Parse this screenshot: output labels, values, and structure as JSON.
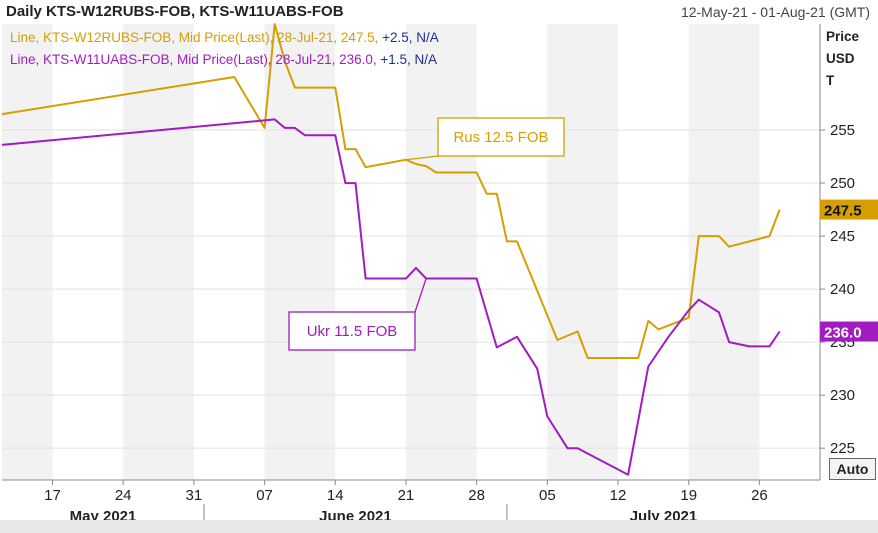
{
  "header": {
    "title": "Daily KTS-W12RUBS-FOB, KTS-W11UABS-FOB",
    "range": "12-May-21 - 01-Aug-21 (GMT)"
  },
  "legend": [
    {
      "series": "Line, KTS-W12RUBS-FOB, Mid Price(Last), 28-Jul-21, 247.5,",
      "change": "+2.5, N/A",
      "color": "#d69e00"
    },
    {
      "series": "Line, KTS-W11UABS-FOB, Mid Price(Last), 28-Jul-21, 236.0,",
      "change": "+1.5, N/A",
      "color": "#a21bc1"
    }
  ],
  "axis": {
    "title_line1": "Price",
    "title_line2": "USD",
    "title_line3": "T",
    "auto_label": "Auto"
  },
  "chart_data": {
    "type": "line",
    "title": "Daily KTS-W12RUBS-FOB, KTS-W11UABS-FOB",
    "date_range": "12-May-21 - 01-Aug-21 (GMT)",
    "ylabel": "Price USD T",
    "ylim": [
      222,
      265
    ],
    "yticks": [
      225,
      230,
      235,
      240,
      245,
      250,
      255
    ],
    "xlim": [
      "2021-05-12",
      "2021-08-01"
    ],
    "x_ticks": [
      {
        "date": "2021-05-17",
        "label": "17"
      },
      {
        "date": "2021-05-24",
        "label": "24"
      },
      {
        "date": "2021-05-31",
        "label": "31"
      },
      {
        "date": "2021-06-07",
        "label": "07"
      },
      {
        "date": "2021-06-14",
        "label": "14"
      },
      {
        "date": "2021-06-21",
        "label": "21"
      },
      {
        "date": "2021-06-28",
        "label": "28"
      },
      {
        "date": "2021-07-05",
        "label": "05"
      },
      {
        "date": "2021-07-12",
        "label": "12"
      },
      {
        "date": "2021-07-19",
        "label": "19"
      },
      {
        "date": "2021-07-26",
        "label": "26"
      }
    ],
    "months": [
      {
        "label": "May 2021",
        "start": "2021-05-12",
        "end": "2021-06-01"
      },
      {
        "label": "June 2021",
        "start": "2021-06-01",
        "end": "2021-07-01"
      },
      {
        "label": "July 2021",
        "start": "2021-07-01",
        "end": "2021-08-01"
      }
    ],
    "series": [
      {
        "name": "KTS-W12RUBS-FOB",
        "label": "Rus 12.5 FOB",
        "color": "#d69e00",
        "last": "247.5",
        "points": [
          [
            "2021-05-12",
            256.5
          ],
          [
            "2021-06-04",
            260.0
          ],
          [
            "2021-06-07",
            255.2
          ],
          [
            "2021-06-08",
            265.0
          ],
          [
            "2021-06-09",
            261.5
          ],
          [
            "2021-06-10",
            259.0
          ],
          [
            "2021-06-14",
            259.0
          ],
          [
            "2021-06-15",
            253.2
          ],
          [
            "2021-06-16",
            253.2
          ],
          [
            "2021-06-17",
            251.5
          ],
          [
            "2021-06-21",
            252.2
          ],
          [
            "2021-06-22",
            251.8
          ],
          [
            "2021-06-23",
            251.6
          ],
          [
            "2021-06-24",
            251.0
          ],
          [
            "2021-06-28",
            251.0
          ],
          [
            "2021-06-29",
            249.0
          ],
          [
            "2021-06-30",
            249.0
          ],
          [
            "2021-07-01",
            244.5
          ],
          [
            "2021-07-02",
            244.5
          ],
          [
            "2021-07-06",
            235.2
          ],
          [
            "2021-07-08",
            236.0
          ],
          [
            "2021-07-09",
            233.5
          ],
          [
            "2021-07-14",
            233.5
          ],
          [
            "2021-07-15",
            237.0
          ],
          [
            "2021-07-16",
            236.2
          ],
          [
            "2021-07-19",
            237.3
          ],
          [
            "2021-07-20",
            245.0
          ],
          [
            "2021-07-22",
            245.0
          ],
          [
            "2021-07-23",
            244.0
          ],
          [
            "2021-07-27",
            245.0
          ],
          [
            "2021-07-28",
            247.5
          ]
        ]
      },
      {
        "name": "KTS-W11UABS-FOB",
        "label": "Ukr 11.5 FOB",
        "color": "#a21bc1",
        "last": "236.0",
        "points": [
          [
            "2021-05-12",
            253.6
          ],
          [
            "2021-06-08",
            256.0
          ],
          [
            "2021-06-09",
            255.2
          ],
          [
            "2021-06-10",
            255.2
          ],
          [
            "2021-06-11",
            254.5
          ],
          [
            "2021-06-14",
            254.5
          ],
          [
            "2021-06-15",
            250.0
          ],
          [
            "2021-06-16",
            250.0
          ],
          [
            "2021-06-17",
            241.0
          ],
          [
            "2021-06-21",
            241.0
          ],
          [
            "2021-06-22",
            242.0
          ],
          [
            "2021-06-23",
            241.0
          ],
          [
            "2021-06-28",
            241.0
          ],
          [
            "2021-06-30",
            234.5
          ],
          [
            "2021-07-02",
            235.5
          ],
          [
            "2021-07-04",
            232.5
          ],
          [
            "2021-07-05",
            228.0
          ],
          [
            "2021-07-07",
            225.0
          ],
          [
            "2021-07-08",
            225.0
          ],
          [
            "2021-07-13",
            222.5
          ],
          [
            "2021-07-15",
            232.7
          ],
          [
            "2021-07-17",
            235.5
          ],
          [
            "2021-07-19",
            238.0
          ],
          [
            "2021-07-20",
            239.0
          ],
          [
            "2021-07-22",
            237.8
          ],
          [
            "2021-07-23",
            235.0
          ],
          [
            "2021-07-25",
            234.6
          ],
          [
            "2021-07-27",
            234.6
          ],
          [
            "2021-07-28",
            236.0
          ]
        ]
      }
    ]
  }
}
